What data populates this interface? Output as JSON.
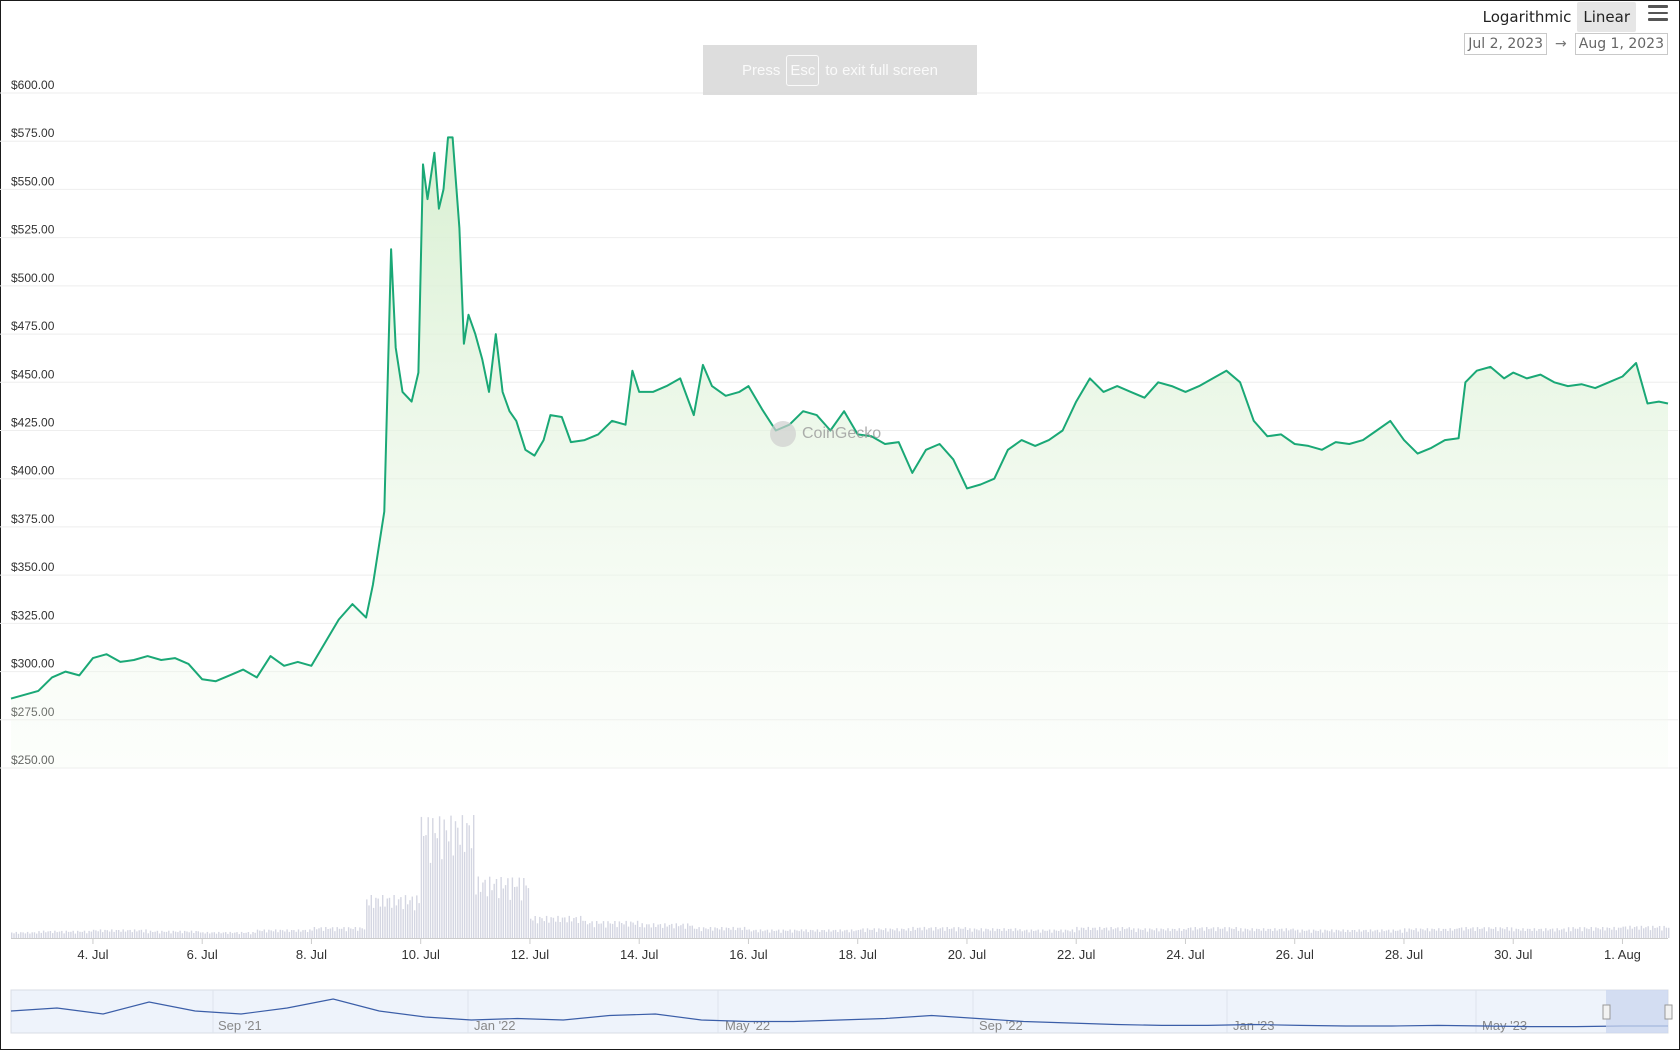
{
  "toolbar": {
    "scale_log": "Logarithmic",
    "scale_linear": "Linear",
    "active_scale": "linear",
    "menu_icon": "hamburger-menu-icon",
    "date_from": "Jul 2, 2023",
    "date_arrow": "→",
    "date_to": "Aug 1, 2023"
  },
  "fullscreen_notice": {
    "press": "Press",
    "key": "Esc",
    "rest": "to exit full screen"
  },
  "watermark": "CoinGecko",
  "colors": {
    "line": "#1aa876",
    "area_top": "#d6efcf",
    "volume": "#d4d6e2",
    "navigator_line": "#3b5ea8",
    "navigator_fill": "#eef3fb",
    "navigator_selection": "#c9d6ef"
  },
  "chart_data": {
    "type": "area",
    "title": "",
    "xlabel": "",
    "ylabel": "",
    "y_axis": {
      "min": 250,
      "max": 600,
      "ticks": [
        "$600.00",
        "$575.00",
        "$550.00",
        "$525.00",
        "$500.00",
        "$475.00",
        "$450.00",
        "$425.00",
        "$400.00",
        "$375.00",
        "$350.00",
        "$325.00",
        "$300.00",
        "$275.00",
        "$250.00"
      ],
      "tick_values": [
        600,
        575,
        550,
        525,
        500,
        475,
        450,
        425,
        400,
        375,
        350,
        325,
        300,
        275,
        250
      ]
    },
    "x_axis": {
      "start": "2023-07-02T12:00",
      "end": "2023-08-01T20:00",
      "ticks": [
        {
          "label": "4. Jul",
          "date": "2023-07-04"
        },
        {
          "label": "6. Jul",
          "date": "2023-07-06"
        },
        {
          "label": "8. Jul",
          "date": "2023-07-08"
        },
        {
          "label": "10. Jul",
          "date": "2023-07-10"
        },
        {
          "label": "12. Jul",
          "date": "2023-07-12"
        },
        {
          "label": "14. Jul",
          "date": "2023-07-14"
        },
        {
          "label": "16. Jul",
          "date": "2023-07-16"
        },
        {
          "label": "18. Jul",
          "date": "2023-07-18"
        },
        {
          "label": "20. Jul",
          "date": "2023-07-20"
        },
        {
          "label": "22. Jul",
          "date": "2023-07-22"
        },
        {
          "label": "24. Jul",
          "date": "2023-07-24"
        },
        {
          "label": "26. Jul",
          "date": "2023-07-26"
        },
        {
          "label": "28. Jul",
          "date": "2023-07-28"
        },
        {
          "label": "30. Jul",
          "date": "2023-07-30"
        },
        {
          "label": "1. Aug",
          "date": "2023-08-01"
        }
      ]
    },
    "grid": true,
    "series": [
      {
        "type": "area",
        "points": [
          [
            "2023-07-02T12:00",
            286
          ],
          [
            "2023-07-03T00:00",
            290
          ],
          [
            "2023-07-03T06:00",
            297
          ],
          [
            "2023-07-03T12:00",
            300
          ],
          [
            "2023-07-03T18:00",
            298
          ],
          [
            "2023-07-04T00:00",
            307
          ],
          [
            "2023-07-04T06:00",
            309
          ],
          [
            "2023-07-04T12:00",
            305
          ],
          [
            "2023-07-04T18:00",
            306
          ],
          [
            "2023-07-05T00:00",
            308
          ],
          [
            "2023-07-05T06:00",
            306
          ],
          [
            "2023-07-05T12:00",
            307
          ],
          [
            "2023-07-05T18:00",
            304
          ],
          [
            "2023-07-06T00:00",
            296
          ],
          [
            "2023-07-06T06:00",
            295
          ],
          [
            "2023-07-06T12:00",
            298
          ],
          [
            "2023-07-06T18:00",
            301
          ],
          [
            "2023-07-07T00:00",
            297
          ],
          [
            "2023-07-07T06:00",
            308
          ],
          [
            "2023-07-07T12:00",
            303
          ],
          [
            "2023-07-07T18:00",
            305
          ],
          [
            "2023-07-08T00:00",
            303
          ],
          [
            "2023-07-08T06:00",
            315
          ],
          [
            "2023-07-08T12:00",
            327
          ],
          [
            "2023-07-08T18:00",
            335
          ],
          [
            "2023-07-09T00:00",
            328
          ],
          [
            "2023-07-09T03:00",
            345
          ],
          [
            "2023-07-09T08:00",
            383
          ],
          [
            "2023-07-09T11:00",
            519
          ],
          [
            "2023-07-09T13:00",
            468
          ],
          [
            "2023-07-09T16:00",
            445
          ],
          [
            "2023-07-09T20:00",
            440
          ],
          [
            "2023-07-09T23:00",
            455
          ],
          [
            "2023-07-10T01:00",
            563
          ],
          [
            "2023-07-10T03:00",
            545
          ],
          [
            "2023-07-10T06:00",
            569
          ],
          [
            "2023-07-10T08:00",
            540
          ],
          [
            "2023-07-10T10:00",
            550
          ],
          [
            "2023-07-10T12:00",
            577
          ],
          [
            "2023-07-10T14:00",
            577
          ],
          [
            "2023-07-10T17:00",
            530
          ],
          [
            "2023-07-10T19:00",
            470
          ],
          [
            "2023-07-10T21:00",
            485
          ],
          [
            "2023-07-11T00:00",
            475
          ],
          [
            "2023-07-11T03:00",
            462
          ],
          [
            "2023-07-11T06:00",
            445
          ],
          [
            "2023-07-11T09:00",
            475
          ],
          [
            "2023-07-11T12:00",
            445
          ],
          [
            "2023-07-11T15:00",
            435
          ],
          [
            "2023-07-11T18:00",
            430
          ],
          [
            "2023-07-11T22:00",
            415
          ],
          [
            "2023-07-12T02:00",
            412
          ],
          [
            "2023-07-12T06:00",
            420
          ],
          [
            "2023-07-12T09:00",
            433
          ],
          [
            "2023-07-12T14:00",
            432
          ],
          [
            "2023-07-12T18:00",
            419
          ],
          [
            "2023-07-13T00:00",
            420
          ],
          [
            "2023-07-13T06:00",
            423
          ],
          [
            "2023-07-13T12:00",
            430
          ],
          [
            "2023-07-13T18:00",
            428
          ],
          [
            "2023-07-13T21:00",
            456
          ],
          [
            "2023-07-14T00:00",
            445
          ],
          [
            "2023-07-14T06:00",
            445
          ],
          [
            "2023-07-14T12:00",
            448
          ],
          [
            "2023-07-14T18:00",
            452
          ],
          [
            "2023-07-15T00:00",
            433
          ],
          [
            "2023-07-15T04:00",
            459
          ],
          [
            "2023-07-15T08:00",
            448
          ],
          [
            "2023-07-15T14:00",
            443
          ],
          [
            "2023-07-15T20:00",
            445
          ],
          [
            "2023-07-16T00:00",
            448
          ],
          [
            "2023-07-16T06:00",
            436
          ],
          [
            "2023-07-16T12:00",
            425
          ],
          [
            "2023-07-16T18:00",
            428
          ],
          [
            "2023-07-17T00:00",
            435
          ],
          [
            "2023-07-17T06:00",
            433
          ],
          [
            "2023-07-17T12:00",
            425
          ],
          [
            "2023-07-17T18:00",
            435
          ],
          [
            "2023-07-18T00:00",
            423
          ],
          [
            "2023-07-18T06:00",
            422
          ],
          [
            "2023-07-18T12:00",
            418
          ],
          [
            "2023-07-18T18:00",
            419
          ],
          [
            "2023-07-19T00:00",
            403
          ],
          [
            "2023-07-19T06:00",
            415
          ],
          [
            "2023-07-19T12:00",
            418
          ],
          [
            "2023-07-19T18:00",
            410
          ],
          [
            "2023-07-20T00:00",
            395
          ],
          [
            "2023-07-20T06:00",
            397
          ],
          [
            "2023-07-20T12:00",
            400
          ],
          [
            "2023-07-20T18:00",
            415
          ],
          [
            "2023-07-21T00:00",
            420
          ],
          [
            "2023-07-21T06:00",
            417
          ],
          [
            "2023-07-21T12:00",
            420
          ],
          [
            "2023-07-21T18:00",
            425
          ],
          [
            "2023-07-22T00:00",
            440
          ],
          [
            "2023-07-22T06:00",
            452
          ],
          [
            "2023-07-22T12:00",
            445
          ],
          [
            "2023-07-22T18:00",
            448
          ],
          [
            "2023-07-23T00:00",
            445
          ],
          [
            "2023-07-23T06:00",
            442
          ],
          [
            "2023-07-23T12:00",
            450
          ],
          [
            "2023-07-23T18:00",
            448
          ],
          [
            "2023-07-24T00:00",
            445
          ],
          [
            "2023-07-24T06:00",
            448
          ],
          [
            "2023-07-24T12:00",
            452
          ],
          [
            "2023-07-24T18:00",
            456
          ],
          [
            "2023-07-25T00:00",
            450
          ],
          [
            "2023-07-25T06:00",
            430
          ],
          [
            "2023-07-25T12:00",
            422
          ],
          [
            "2023-07-25T18:00",
            423
          ],
          [
            "2023-07-26T00:00",
            418
          ],
          [
            "2023-07-26T06:00",
            417
          ],
          [
            "2023-07-26T12:00",
            415
          ],
          [
            "2023-07-26T18:00",
            419
          ],
          [
            "2023-07-27T00:00",
            418
          ],
          [
            "2023-07-27T06:00",
            420
          ],
          [
            "2023-07-27T12:00",
            425
          ],
          [
            "2023-07-27T18:00",
            430
          ],
          [
            "2023-07-28T00:00",
            420
          ],
          [
            "2023-07-28T06:00",
            413
          ],
          [
            "2023-07-28T12:00",
            416
          ],
          [
            "2023-07-28T18:00",
            420
          ],
          [
            "2023-07-29T00:00",
            421
          ],
          [
            "2023-07-29T03:00",
            450
          ],
          [
            "2023-07-29T08:00",
            456
          ],
          [
            "2023-07-29T14:00",
            458
          ],
          [
            "2023-07-29T20:00",
            452
          ],
          [
            "2023-07-30T00:00",
            455
          ],
          [
            "2023-07-30T06:00",
            452
          ],
          [
            "2023-07-30T12:00",
            454
          ],
          [
            "2023-07-30T18:00",
            450
          ],
          [
            "2023-07-31T00:00",
            448
          ],
          [
            "2023-07-31T06:00",
            449
          ],
          [
            "2023-07-31T12:00",
            447
          ],
          [
            "2023-07-31T18:00",
            450
          ],
          [
            "2023-08-01T00:00",
            453
          ],
          [
            "2023-08-01T06:00",
            460
          ],
          [
            "2023-08-01T11:00",
            439
          ],
          [
            "2023-08-01T16:00",
            440
          ],
          [
            "2023-08-01T20:00",
            439
          ]
        ]
      },
      {
        "type": "volume_bars",
        "note": "relative trading volume (unlabeled axis)",
        "points": [
          [
            "2023-07-02",
            5
          ],
          [
            "2023-07-03",
            6
          ],
          [
            "2023-07-04",
            7
          ],
          [
            "2023-07-05",
            6
          ],
          [
            "2023-07-06",
            5
          ],
          [
            "2023-07-07",
            7
          ],
          [
            "2023-07-08",
            9
          ],
          [
            "2023-07-09",
            35
          ],
          [
            "2023-07-10",
            100
          ],
          [
            "2023-07-11",
            50
          ],
          [
            "2023-07-12",
            18
          ],
          [
            "2023-07-13",
            14
          ],
          [
            "2023-07-14",
            12
          ],
          [
            "2023-07-15",
            9
          ],
          [
            "2023-07-16",
            7
          ],
          [
            "2023-07-17",
            7
          ],
          [
            "2023-07-18",
            8
          ],
          [
            "2023-07-19",
            9
          ],
          [
            "2023-07-20",
            8
          ],
          [
            "2023-07-21",
            7
          ],
          [
            "2023-07-22",
            9
          ],
          [
            "2023-07-23",
            8
          ],
          [
            "2023-07-24",
            9
          ],
          [
            "2023-07-25",
            8
          ],
          [
            "2023-07-26",
            7
          ],
          [
            "2023-07-27",
            7
          ],
          [
            "2023-07-28",
            8
          ],
          [
            "2023-07-29",
            9
          ],
          [
            "2023-07-30",
            8
          ],
          [
            "2023-07-31",
            9
          ],
          [
            "2023-08-01",
            10
          ]
        ]
      }
    ],
    "navigator": {
      "labels": [
        "Sep '21",
        "Jan '22",
        "May '22",
        "Sep '22",
        "Jan '23",
        "May '23"
      ],
      "values": [
        0.6,
        0.7,
        0.5,
        0.9,
        0.6,
        0.5,
        0.7,
        1.0,
        0.6,
        0.4,
        0.3,
        0.35,
        0.3,
        0.45,
        0.5,
        0.3,
        0.25,
        0.25,
        0.3,
        0.35,
        0.45,
        0.35,
        0.25,
        0.2,
        0.15,
        0.12,
        0.12,
        0.15,
        0.12,
        0.1,
        0.1,
        0.12,
        0.1,
        0.08,
        0.08,
        0.1,
        0.1
      ]
    }
  }
}
